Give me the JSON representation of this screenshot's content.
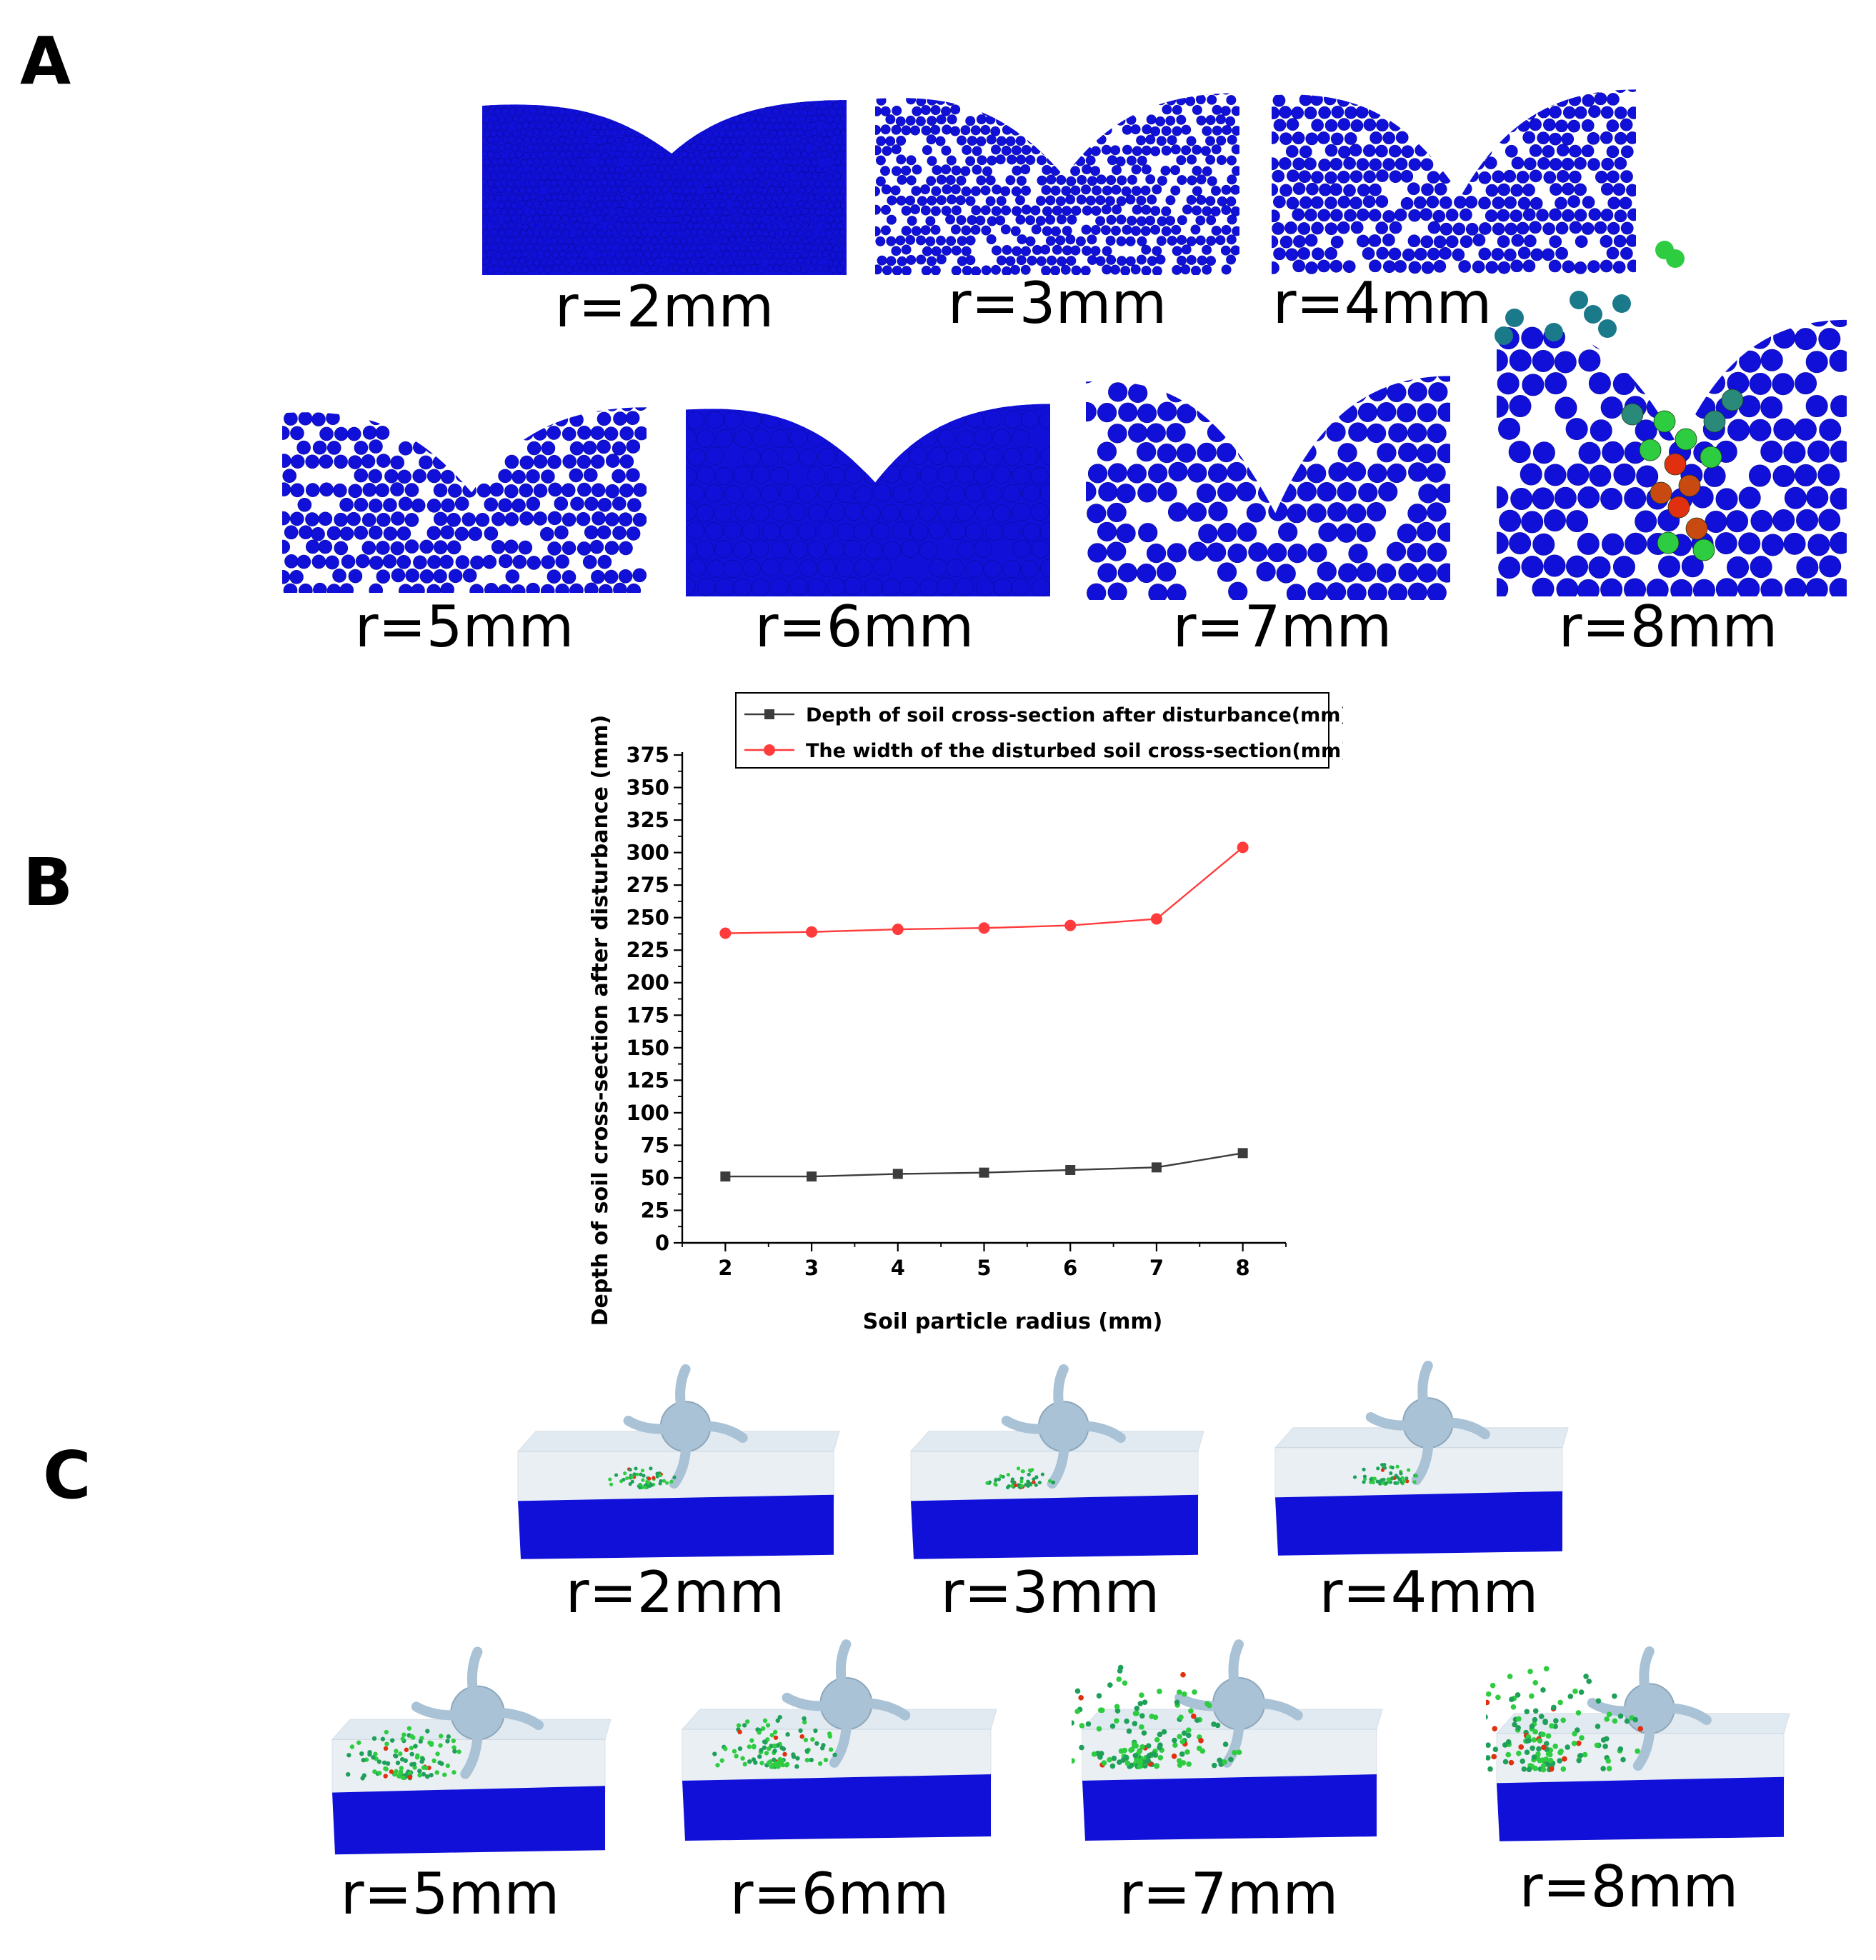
{
  "panels": {
    "a": "A",
    "b": "B",
    "c": "C"
  },
  "panel_a": {
    "labels": [
      "r=2mm",
      "r=3mm",
      "r=4mm",
      "r=5mm",
      "r=6mm",
      "r=7mm",
      "r=8mm"
    ]
  },
  "panel_c": {
    "labels": [
      "r=2mm",
      "r=3mm",
      "r=4mm",
      "r=5mm",
      "r=6mm",
      "r=7mm",
      "r=8mm"
    ]
  },
  "colors": {
    "soil": "#1010d8",
    "depth_series": "#3c3c3c",
    "width_series": "#ff3b3b",
    "disturbed_green": "#2ecc40",
    "disturbed_red": "#e03010",
    "box": "#c9d9e6",
    "rotor": "#a9c2d6"
  },
  "chart_data": {
    "type": "line",
    "xlabel": "Soil particle radius (mm)",
    "ylabel": "Depth of soil cross-section after disturbance (mm)",
    "x": [
      2,
      3,
      4,
      5,
      6,
      7,
      8
    ],
    "xlim": [
      1.5,
      8.5
    ],
    "ylim": [
      0,
      375
    ],
    "x_ticks": [
      2,
      3,
      4,
      5,
      6,
      7,
      8
    ],
    "y_ticks": [
      0,
      25,
      50,
      75,
      100,
      125,
      150,
      175,
      200,
      225,
      250,
      275,
      300,
      325,
      350,
      375
    ],
    "legend_position": "top",
    "series": [
      {
        "name": "Depth of soil cross-section after disturbance(mm)",
        "marker": "square",
        "color": "#3c3c3c",
        "values": [
          51,
          51,
          53,
          54,
          56,
          58,
          69
        ]
      },
      {
        "name": "The width of the disturbed soil cross-section(mm)",
        "marker": "circle",
        "color": "#ff3b3b",
        "values": [
          238,
          239,
          241,
          242,
          244,
          249,
          304
        ]
      }
    ]
  }
}
